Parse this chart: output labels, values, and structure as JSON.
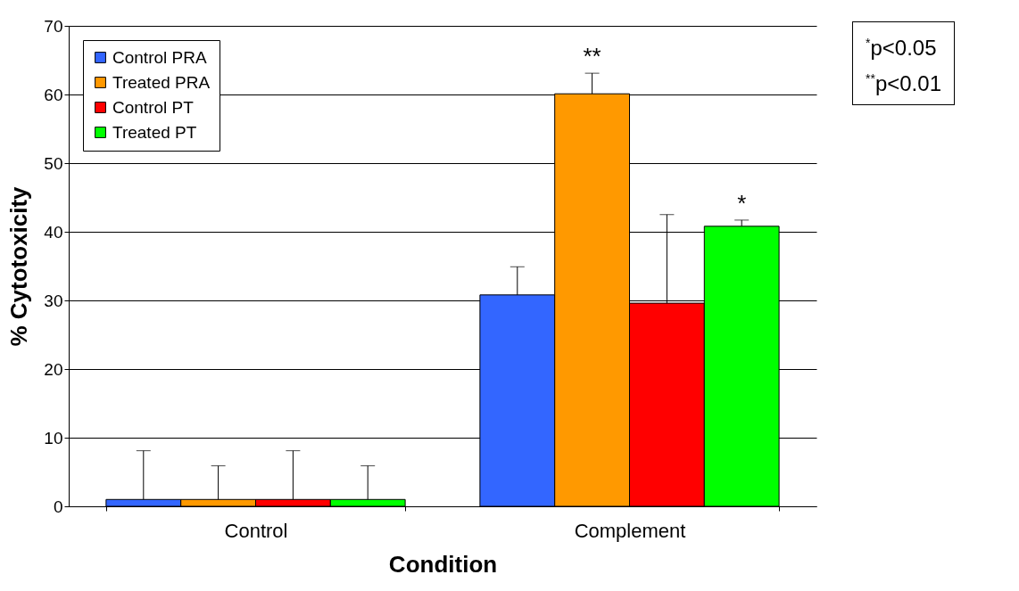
{
  "chart_data": {
    "type": "bar",
    "xlabel": "Condition",
    "ylabel": "% Cytotoxicity",
    "categories": [
      "Control",
      "Complement"
    ],
    "series": [
      {
        "name": "Control PRA",
        "color": "#3366ff",
        "values": [
          1,
          30.8
        ],
        "errors": [
          [
            1,
            8.1
          ],
          [
            30.8,
            34.9
          ]
        ]
      },
      {
        "name": "Treated PRA",
        "color": "#ff9900",
        "values": [
          1,
          60.1
        ],
        "errors": [
          [
            1,
            5.9
          ],
          [
            60.1,
            63.1
          ]
        ]
      },
      {
        "name": "Control PT",
        "color": "#ff0000",
        "values": [
          1,
          29.6
        ],
        "errors": [
          [
            1,
            8.1
          ],
          [
            29.6,
            42.5
          ]
        ]
      },
      {
        "name": "Treated PT",
        "color": "#00ff00",
        "values": [
          1,
          40.8
        ],
        "errors": [
          [
            1,
            5.9
          ],
          [
            40.8,
            41.7
          ]
        ]
      }
    ],
    "ylim": [
      0,
      70
    ],
    "yticks": [
      0,
      10,
      20,
      30,
      40,
      50,
      60,
      70
    ],
    "grid": "y",
    "legend": "top left",
    "annotations": [
      "**",
      "*",
      "$^{*}$p<0.05",
      "$^{**}$p<0.01"
    ]
  }
}
